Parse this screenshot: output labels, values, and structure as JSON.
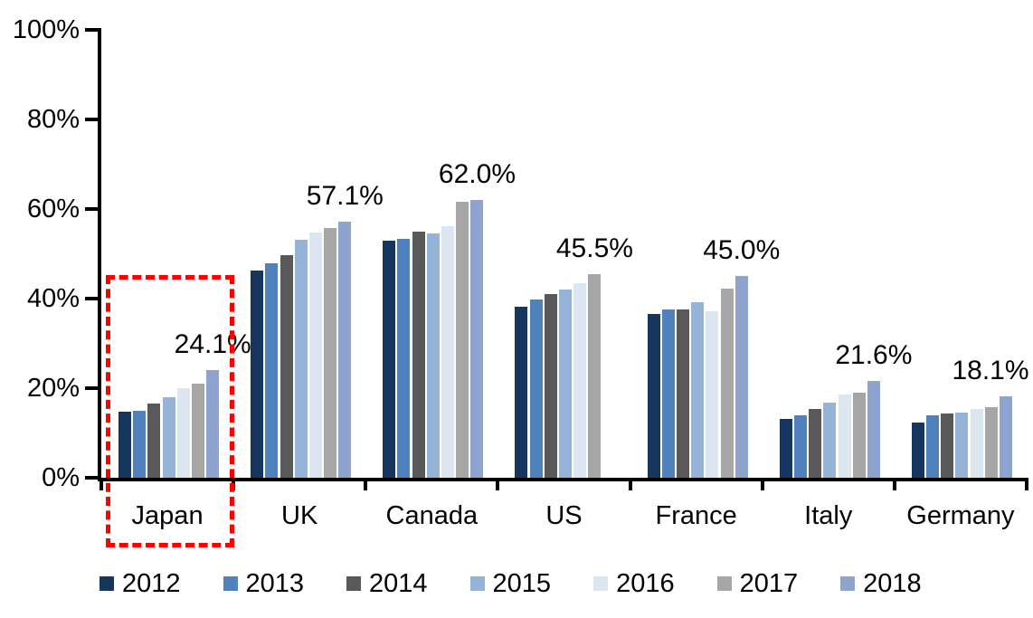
{
  "chart_data": {
    "type": "bar",
    "title": "",
    "xlabel": "",
    "ylabel": "",
    "unit": "%",
    "categories": [
      "Japan",
      "UK",
      "Canada",
      "US",
      "France",
      "Italy",
      "Germany"
    ],
    "series": [
      {
        "name": "2012",
        "color": "#17365D",
        "values": [
          14.8,
          46.3,
          52.9,
          38.2,
          36.5,
          13.2,
          12.4
        ]
      },
      {
        "name": "2013",
        "color": "#4F81BD",
        "values": [
          15.0,
          47.8,
          53.4,
          39.8,
          37.6,
          14.0,
          13.9
        ]
      },
      {
        "name": "2014",
        "color": "#595959",
        "values": [
          16.5,
          49.7,
          55.0,
          41.0,
          37.5,
          15.3,
          14.3
        ]
      },
      {
        "name": "2015",
        "color": "#95B3D7",
        "values": [
          18.0,
          53.2,
          54.6,
          42.0,
          39.2,
          16.7,
          14.6
        ]
      },
      {
        "name": "2016",
        "color": "#DCE6F1",
        "values": [
          20.0,
          54.8,
          56.1,
          43.4,
          37.2,
          18.6,
          15.4
        ]
      },
      {
        "name": "2017",
        "color": "#A6A6A6",
        "values": [
          21.1,
          55.8,
          61.6,
          45.5,
          42.3,
          18.9,
          15.7
        ]
      },
      {
        "name": "2018",
        "color": "#8FA3CF",
        "values": [
          24.1,
          57.1,
          62.0,
          null,
          45.0,
          21.6,
          18.1
        ]
      }
    ],
    "value_labels": [
      "24.1%",
      "57.1%",
      "62.0%",
      "45.5%",
      "45.0%",
      "21.6%",
      "18.1%"
    ],
    "y_ticks": [
      "100%",
      "80%",
      "60%",
      "40%",
      "20%",
      "0%"
    ],
    "y_tick_values": [
      100,
      80,
      60,
      40,
      20,
      0
    ],
    "ylim": [
      0,
      100
    ],
    "grid": false,
    "legend_position": "bottom",
    "legend_labels": [
      "2012",
      "2013",
      "2014",
      "2015",
      "2016",
      "2017",
      "2018"
    ],
    "highlight": {
      "category": "Japan",
      "style": "red-dashed-box",
      "color": "#FE0000"
    },
    "notes": "US group has no 2018 bar; its data label 45.5% sits above the 2017 bar."
  }
}
